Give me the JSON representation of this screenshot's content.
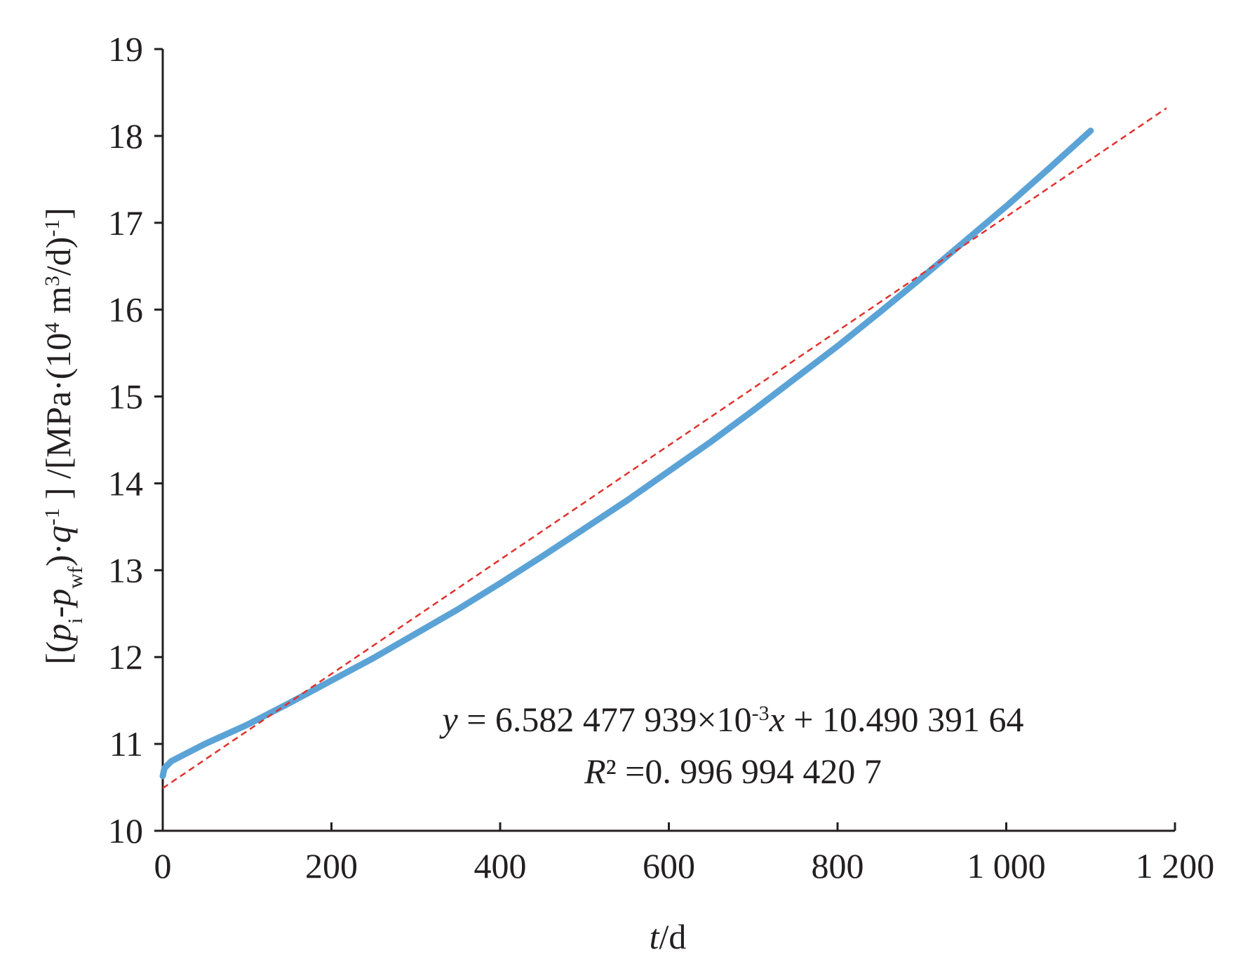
{
  "chart_data": {
    "type": "line",
    "xlabel": {
      "symbol": "t",
      "unit": "/d"
    },
    "ylabel": {
      "open": "[(",
      "p": "p",
      "sub_i": "i",
      "dash": "-",
      "sub_wf": "wf",
      "close_mid": ")·",
      "q": "q",
      "sup_neg1": "-1",
      "unit_open": " ] /[MPa·(10",
      "sup_4": "4",
      "unit_m": " m",
      "sup_3": "3",
      "unit_tail": "/d)",
      "unit_sup": "-1",
      "unit_close": "]"
    },
    "xlim": [
      0,
      1200
    ],
    "ylim": [
      10,
      19
    ],
    "x_ticks": [
      0,
      200,
      400,
      600,
      800,
      1000,
      1200
    ],
    "x_tick_labels": [
      "0",
      "200",
      "400",
      "600",
      "800",
      "1 000",
      "1 200"
    ],
    "y_ticks": [
      10,
      11,
      12,
      13,
      14,
      15,
      16,
      17,
      18,
      19
    ],
    "y_tick_labels": [
      "10",
      "11",
      "12",
      "13",
      "14",
      "15",
      "16",
      "17",
      "18",
      "19"
    ],
    "grid": false,
    "legend": "none",
    "series": [
      {
        "style": "solid",
        "color": "#5ba3d6",
        "x": [
          0,
          2,
          10,
          50,
          100,
          150,
          200,
          250,
          300,
          350,
          400,
          450,
          500,
          550,
          600,
          650,
          700,
          750,
          800,
          850,
          900,
          950,
          1000,
          1050,
          1100
        ],
        "y": [
          10.63,
          10.72,
          10.8,
          11.0,
          11.22,
          11.47,
          11.73,
          11.99,
          12.27,
          12.55,
          12.85,
          13.16,
          13.48,
          13.8,
          14.14,
          14.48,
          14.84,
          15.21,
          15.58,
          15.97,
          16.37,
          16.78,
          17.19,
          17.62,
          18.06
        ]
      },
      {
        "style": "dashed",
        "color": "#e0312d",
        "x": [
          0,
          1190
        ],
        "y": [
          10.49,
          18.32
        ]
      }
    ],
    "annotation": {
      "eq_y": "y",
      "eq_body": " = 6.582 477 939×10",
      "eq_exp": "-3",
      "eq_x": "x",
      "eq_tail": " + 10.490 391 64",
      "r2_symbol": "R",
      "r2_tail": "² =0. 996 994 420 7"
    }
  }
}
